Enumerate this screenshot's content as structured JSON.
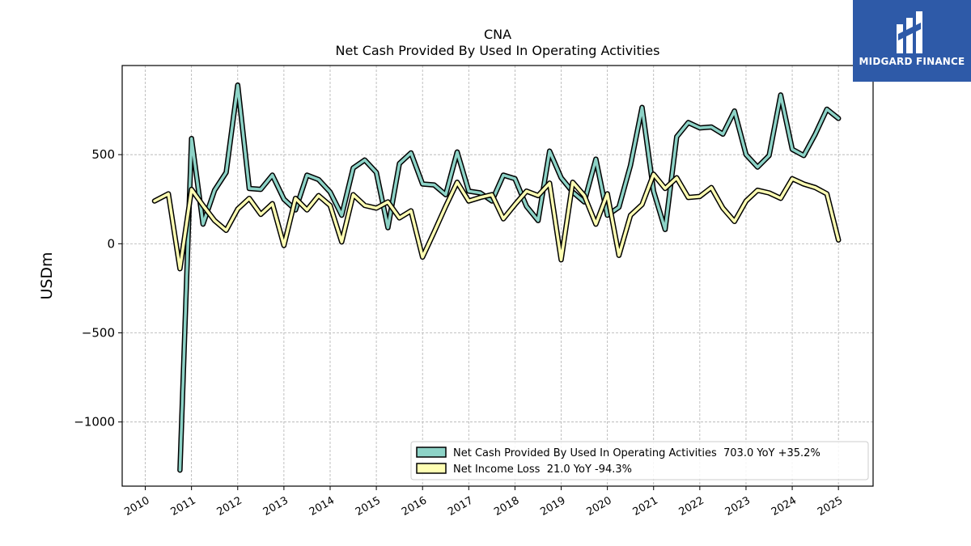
{
  "chart_data": {
    "type": "line",
    "title": "CNA",
    "subtitle": "Net Cash Provided By Used In Operating Activities",
    "ylabel": "USDm",
    "xlim": [
      2009.5,
      2025.75
    ],
    "ylim": [
      -1360,
      1000
    ],
    "yticks": [
      500,
      0,
      -500,
      -1000
    ],
    "ytick_labels": [
      "500",
      "0",
      "−500",
      "−1000"
    ],
    "xticks": [
      "2010",
      "2011",
      "2012",
      "2013",
      "2014",
      "2015",
      "2016",
      "2017",
      "2018",
      "2019",
      "2020",
      "2021",
      "2022",
      "2023",
      "2024",
      "2025"
    ],
    "grid": true,
    "legend_position": "lower-right",
    "series": [
      {
        "name": "Net Cash Provided By Used In Operating Activities  703.0 YoY +35.2%",
        "color": "#8dd3c7",
        "x": [
          2010.75,
          2011.0,
          2011.25,
          2011.5,
          2011.75,
          2012.0,
          2012.25,
          2012.5,
          2012.75,
          2013.0,
          2013.25,
          2013.5,
          2013.75,
          2014.0,
          2014.25,
          2014.5,
          2014.75,
          2015.0,
          2015.25,
          2015.5,
          2015.75,
          2016.0,
          2016.25,
          2016.5,
          2016.75,
          2017.0,
          2017.25,
          2017.5,
          2017.75,
          2018.0,
          2018.25,
          2018.5,
          2018.75,
          2019.0,
          2019.25,
          2019.5,
          2019.75,
          2020.0,
          2020.25,
          2020.5,
          2020.75,
          2021.0,
          2021.25,
          2021.5,
          2021.75,
          2022.0,
          2022.25,
          2022.5,
          2022.75,
          2023.0,
          2023.25,
          2023.5,
          2023.75,
          2024.0,
          2024.25,
          2024.5,
          2024.75,
          2025.0
        ],
        "y": [
          -1270,
          590,
          110,
          300,
          400,
          890,
          310,
          305,
          385,
          250,
          190,
          385,
          360,
          290,
          160,
          425,
          470,
          400,
          90,
          450,
          510,
          335,
          330,
          275,
          515,
          295,
          285,
          240,
          385,
          365,
          210,
          130,
          520,
          370,
          290,
          235,
          475,
          160,
          205,
          440,
          765,
          295,
          80,
          600,
          680,
          650,
          655,
          615,
          745,
          500,
          430,
          495,
          835,
          530,
          495,
          615,
          755,
          703
        ]
      },
      {
        "name": "Net Income Loss  21.0 YoY -94.3%",
        "color": "#ffffb3",
        "x": [
          2010.2,
          2010.5,
          2010.75,
          2011.0,
          2011.25,
          2011.5,
          2011.75,
          2012.0,
          2012.25,
          2012.5,
          2012.75,
          2013.0,
          2013.25,
          2013.5,
          2013.75,
          2014.0,
          2014.25,
          2014.5,
          2014.75,
          2015.0,
          2015.25,
          2015.5,
          2015.75,
          2016.0,
          2016.25,
          2016.5,
          2016.75,
          2017.0,
          2017.25,
          2017.5,
          2017.75,
          2018.0,
          2018.25,
          2018.5,
          2018.75,
          2019.0,
          2019.25,
          2019.5,
          2019.75,
          2020.0,
          2020.25,
          2020.5,
          2020.75,
          2021.0,
          2021.25,
          2021.5,
          2021.75,
          2022.0,
          2022.25,
          2022.5,
          2022.75,
          2023.0,
          2023.25,
          2023.5,
          2023.75,
          2024.0,
          2024.25,
          2024.5,
          2024.75,
          2025.0
        ],
        "y": [
          240,
          280,
          -140,
          305,
          215,
          130,
          75,
          195,
          255,
          165,
          225,
          -10,
          255,
          190,
          270,
          215,
          10,
          275,
          215,
          200,
          235,
          145,
          185,
          -75,
          65,
          210,
          345,
          240,
          260,
          275,
          140,
          220,
          295,
          270,
          340,
          -90,
          345,
          270,
          110,
          280,
          -65,
          160,
          220,
          390,
          310,
          370,
          260,
          265,
          315,
          200,
          125,
          240,
          300,
          285,
          255,
          365,
          335,
          315,
          280,
          21
        ]
      }
    ]
  },
  "logo": {
    "text": "MIDGARD FINANCE"
  }
}
